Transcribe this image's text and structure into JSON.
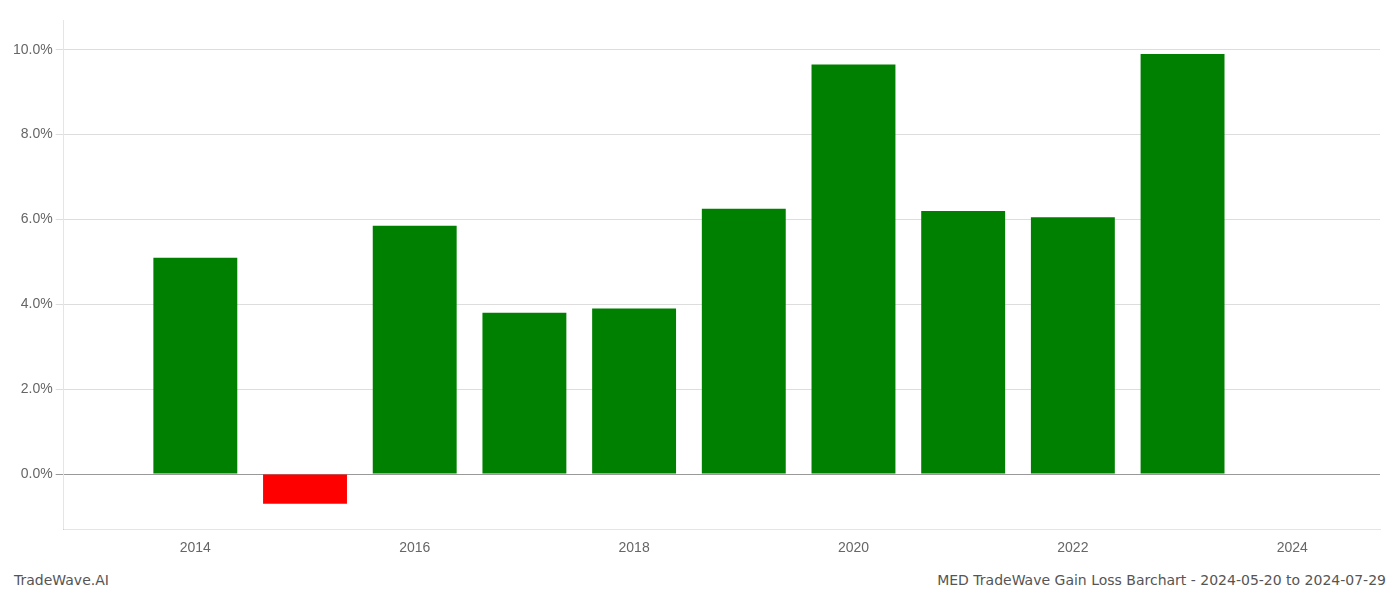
{
  "chart_data": {
    "type": "bar",
    "x": [
      2014,
      2015,
      2016,
      2017,
      2018,
      2019,
      2020,
      2021,
      2022,
      2023
    ],
    "values": [
      0.051,
      -0.007,
      0.0585,
      0.038,
      0.039,
      0.0625,
      0.0965,
      0.062,
      0.0605,
      0.099
    ],
    "colors": [
      "#008000",
      "#ff0000",
      "#008000",
      "#008000",
      "#008000",
      "#008000",
      "#008000",
      "#008000",
      "#008000",
      "#008000"
    ],
    "annotations": [
      "TradeWave.AI",
      "MED TradeWave Gain Loss Barchart - 2024-05-20 to 2024-07-29"
    ],
    "xlim": [
      2012.8,
      2024.8
    ],
    "xticks": [
      2014,
      2016,
      2018,
      2020,
      2022,
      2024
    ],
    "ylim": [
      -0.013,
      0.107
    ],
    "yticks": [
      {
        "value": 0.0,
        "label": "0.0%"
      },
      {
        "value": 0.02,
        "label": "2.0%"
      },
      {
        "value": 0.04,
        "label": "4.0%"
      },
      {
        "value": 0.06,
        "label": "6.0%"
      },
      {
        "value": 0.08,
        "label": "8.0%"
      },
      {
        "value": 0.1,
        "label": "10.0%"
      }
    ],
    "grid": true
  }
}
